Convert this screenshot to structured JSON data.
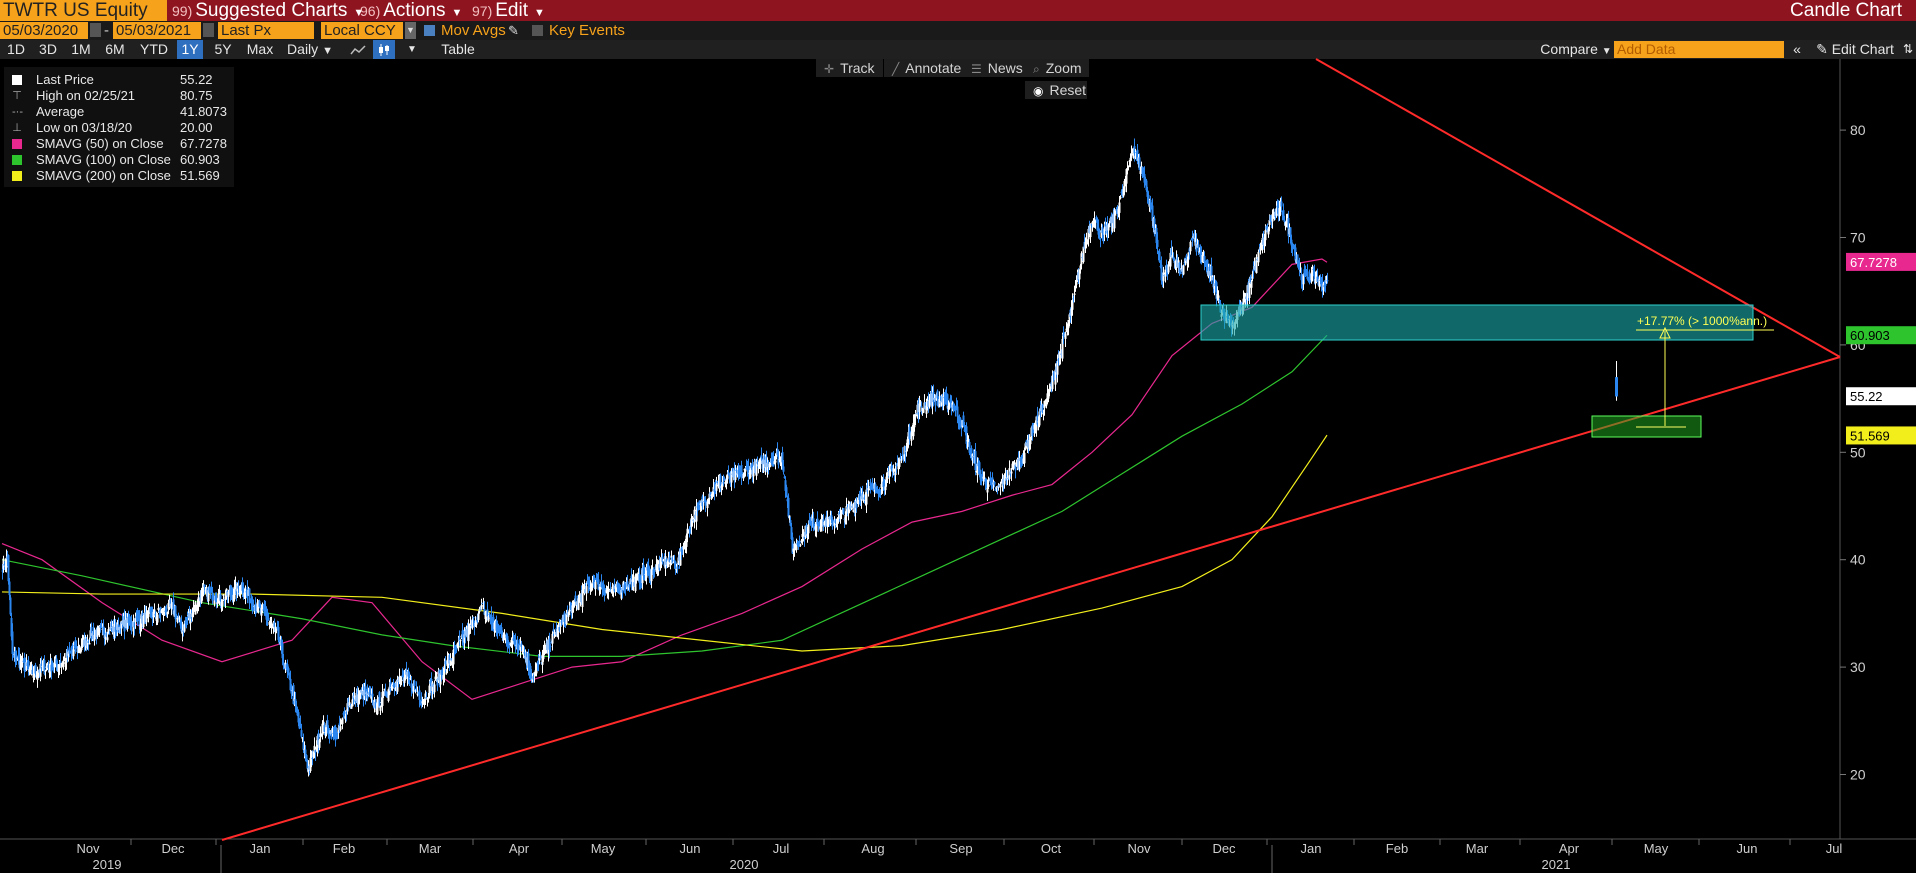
{
  "header": {
    "ticker": "TWTR US Equity",
    "menus": [
      {
        "num": "99)",
        "label": "Suggested Charts"
      },
      {
        "num": "96)",
        "label": "Actions"
      },
      {
        "num": "97)",
        "label": "Edit"
      }
    ],
    "chart_type": "Candle Chart"
  },
  "controls": {
    "start_date": "05/03/2020",
    "end_date": "05/03/2021",
    "price_field": "Last Px",
    "currency": "Local CCY",
    "mov_avgs_label": "Mov Avgs",
    "key_events_label": "Key Events",
    "periods": [
      "1D",
      "3D",
      "1M",
      "6M",
      "YTD",
      "1Y",
      "5Y",
      "Max"
    ],
    "active_period": "1Y",
    "frequency": "Daily",
    "table_label": "Table",
    "compare_label": "Compare",
    "add_data_placeholder": "Add Data",
    "edit_chart_label": "Edit Chart"
  },
  "toolbar": {
    "track": "Track",
    "annotate": "Annotate",
    "news": "News",
    "zoom": "Zoom",
    "reset": "Reset"
  },
  "legend": [
    {
      "label": "Last Price",
      "value": "55.22",
      "kind": "square",
      "color": "#ffffff"
    },
    {
      "label": "High on 02/25/21",
      "value": "80.75",
      "kind": "glyph",
      "glyph": "⊤"
    },
    {
      "label": "Average",
      "value": "41.8073",
      "kind": "glyph",
      "glyph": "-·-"
    },
    {
      "label": "Low on 03/18/20",
      "value": "20.00",
      "kind": "glyph",
      "glyph": "⊥"
    },
    {
      "label": "SMAVG (50)  on Close",
      "value": "67.7278",
      "kind": "square",
      "color": "#e8288f"
    },
    {
      "label": "SMAVG (100)  on Close",
      "value": "60.903",
      "kind": "square",
      "color": "#2ec42e"
    },
    {
      "label": "SMAVG (200)  on Close",
      "value": "51.569",
      "kind": "square",
      "color": "#f2ee1c"
    }
  ],
  "annotation_text": "+17.77% (> 1000%ann.)",
  "colors": {
    "up": "#ffffff",
    "down": "#2b86f0",
    "sma50": "#e8288f",
    "sma100": "#2ec42e",
    "sma200": "#f2ee1c",
    "trendline": "#ff2a2a",
    "zone": "#1aa8a8",
    "target_box": "#22b022"
  },
  "chart_data": {
    "type": "candlestick",
    "ylim": [
      15,
      85
    ],
    "y_ticks": [
      20,
      30,
      40,
      50,
      60,
      70,
      80
    ],
    "month_labels": [
      "Nov",
      "Dec",
      "Jan",
      "Feb",
      "Mar",
      "Apr",
      "May",
      "Jun",
      "Jul",
      "Aug",
      "Sep",
      "Oct",
      "Nov",
      "Dec",
      "Jan",
      "Feb",
      "Mar",
      "Apr",
      "May",
      "Jun",
      "Jul"
    ],
    "year_labels": [
      "2019",
      "2020",
      "2021"
    ],
    "price_tags": [
      {
        "value": 67.7278,
        "label": "67.7278",
        "color": "#e8288f",
        "text_color": "#ffffff"
      },
      {
        "value": 60.903,
        "label": "60.903",
        "color": "#2ec42e",
        "text_color": "#000000"
      },
      {
        "value": 55.22,
        "label": "55.22",
        "color": "#ffffff",
        "text_color": "#000000"
      },
      {
        "value": 51.569,
        "label": "51.569",
        "color": "#f2ee1c",
        "text_color": "#000000"
      }
    ],
    "close_anchors": [
      [
        0,
        39.5
      ],
      [
        5,
        40.0
      ],
      [
        10,
        31.0
      ],
      [
        30,
        29.5
      ],
      [
        60,
        30.5
      ],
      [
        90,
        33.0
      ],
      [
        110,
        33.5
      ],
      [
        140,
        34.5
      ],
      [
        170,
        35.5
      ],
      [
        180,
        33.5
      ],
      [
        200,
        37.0
      ],
      [
        220,
        36.5
      ],
      [
        240,
        37.5
      ],
      [
        250,
        36.0
      ],
      [
        265,
        34.5
      ],
      [
        275,
        33.0
      ],
      [
        280,
        31.0
      ],
      [
        290,
        27.5
      ],
      [
        300,
        23.0
      ],
      [
        306,
        20.5
      ],
      [
        320,
        24.5
      ],
      [
        335,
        23.5
      ],
      [
        345,
        26.5
      ],
      [
        360,
        27.5
      ],
      [
        375,
        26.5
      ],
      [
        390,
        28.5
      ],
      [
        405,
        29.0
      ],
      [
        420,
        27.0
      ],
      [
        440,
        29.5
      ],
      [
        460,
        32.5
      ],
      [
        470,
        34.0
      ],
      [
        480,
        35.5
      ],
      [
        495,
        33.5
      ],
      [
        505,
        32.5
      ],
      [
        520,
        32.0
      ],
      [
        530,
        29.0
      ],
      [
        540,
        31.0
      ],
      [
        555,
        33.5
      ],
      [
        570,
        35.5
      ],
      [
        590,
        38.0
      ],
      [
        610,
        37.0
      ],
      [
        630,
        38.0
      ],
      [
        640,
        38.5
      ],
      [
        650,
        39.0
      ],
      [
        665,
        40.0
      ],
      [
        675,
        39.5
      ],
      [
        690,
        44.0
      ],
      [
        710,
        46.5
      ],
      [
        725,
        47.5
      ],
      [
        740,
        48.0
      ],
      [
        760,
        49.0
      ],
      [
        780,
        49.5
      ],
      [
        790,
        41.0
      ],
      [
        810,
        43.5
      ],
      [
        830,
        43.5
      ],
      [
        845,
        44.5
      ],
      [
        860,
        46.0
      ],
      [
        880,
        47.0
      ],
      [
        900,
        49.5
      ],
      [
        915,
        54.0
      ],
      [
        930,
        55.0
      ],
      [
        950,
        54.5
      ],
      [
        960,
        52.5
      ],
      [
        970,
        49.5
      ],
      [
        980,
        47.5
      ],
      [
        995,
        46.5
      ],
      [
        1010,
        48.5
      ],
      [
        1020,
        49.5
      ],
      [
        1030,
        52.0
      ],
      [
        1045,
        55.0
      ],
      [
        1060,
        60.0
      ],
      [
        1070,
        63.5
      ],
      [
        1080,
        68.5
      ],
      [
        1090,
        72.0
      ],
      [
        1100,
        70.0
      ],
      [
        1110,
        71.5
      ],
      [
        1120,
        74.0
      ],
      [
        1130,
        78.5
      ],
      [
        1140,
        76.0
      ],
      [
        1150,
        72.0
      ],
      [
        1160,
        66.0
      ],
      [
        1170,
        68.5
      ],
      [
        1180,
        66.5
      ],
      [
        1190,
        70.0
      ],
      [
        1200,
        68.0
      ],
      [
        1210,
        66.0
      ],
      [
        1220,
        63.0
      ],
      [
        1230,
        62.0
      ],
      [
        1240,
        63.5
      ],
      [
        1250,
        66.5
      ],
      [
        1260,
        69.5
      ],
      [
        1270,
        72.0
      ],
      [
        1280,
        72.5
      ],
      [
        1290,
        69.5
      ],
      [
        1300,
        66.0
      ],
      [
        1310,
        66.5
      ],
      [
        1320,
        65.5
      ],
      [
        1325,
        66.0
      ]
    ],
    "last_close": 55.22,
    "high": 80.75,
    "low": 20.0
  }
}
